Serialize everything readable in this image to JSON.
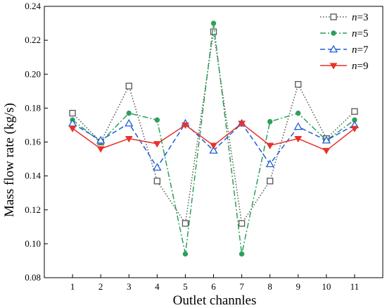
{
  "chart_data": {
    "type": "line",
    "title": "",
    "xlabel": "Outlet channles",
    "ylabel": "Mass flow rate (kg/s)",
    "categories": [
      "1",
      "2",
      "3",
      "4",
      "5",
      "6",
      "7",
      "8",
      "9",
      "10",
      "11"
    ],
    "ylim": [
      0.08,
      0.24
    ],
    "yticks": [
      "0.08",
      "0.10",
      "0.12",
      "0.14",
      "0.16",
      "0.18",
      "0.20",
      "0.22",
      "0.24"
    ],
    "grid": false,
    "legend_position": "top-right",
    "series": [
      {
        "name": "n=3",
        "name_var": "n",
        "name_val": "=3",
        "color": "#555555",
        "line_style": "dotted",
        "marker": "open-square",
        "values": [
          0.177,
          0.16,
          0.193,
          0.137,
          0.112,
          0.225,
          0.112,
          0.137,
          0.194,
          0.162,
          0.178
        ]
      },
      {
        "name": "n=5",
        "name_var": "n",
        "name_val": "=5",
        "color": "#2ca05a",
        "line_style": "dash-dot",
        "marker": "filled-circle",
        "values": [
          0.173,
          0.16,
          0.177,
          0.173,
          0.094,
          0.23,
          0.094,
          0.172,
          0.177,
          0.161,
          0.173
        ]
      },
      {
        "name": "n=7",
        "name_var": "n",
        "name_val": "=7",
        "color": "#1f5fd6",
        "line_style": "dashed",
        "marker": "open-triangle-up",
        "values": [
          0.171,
          0.161,
          0.171,
          0.145,
          0.171,
          0.155,
          0.171,
          0.147,
          0.169,
          0.161,
          0.17
        ]
      },
      {
        "name": "n=9",
        "name_var": "n",
        "name_val": "=9",
        "color": "#e8312b",
        "line_style": "solid",
        "marker": "filled-triangle-down",
        "values": [
          0.168,
          0.156,
          0.162,
          0.159,
          0.17,
          0.158,
          0.171,
          0.158,
          0.162,
          0.155,
          0.168
        ]
      }
    ]
  }
}
